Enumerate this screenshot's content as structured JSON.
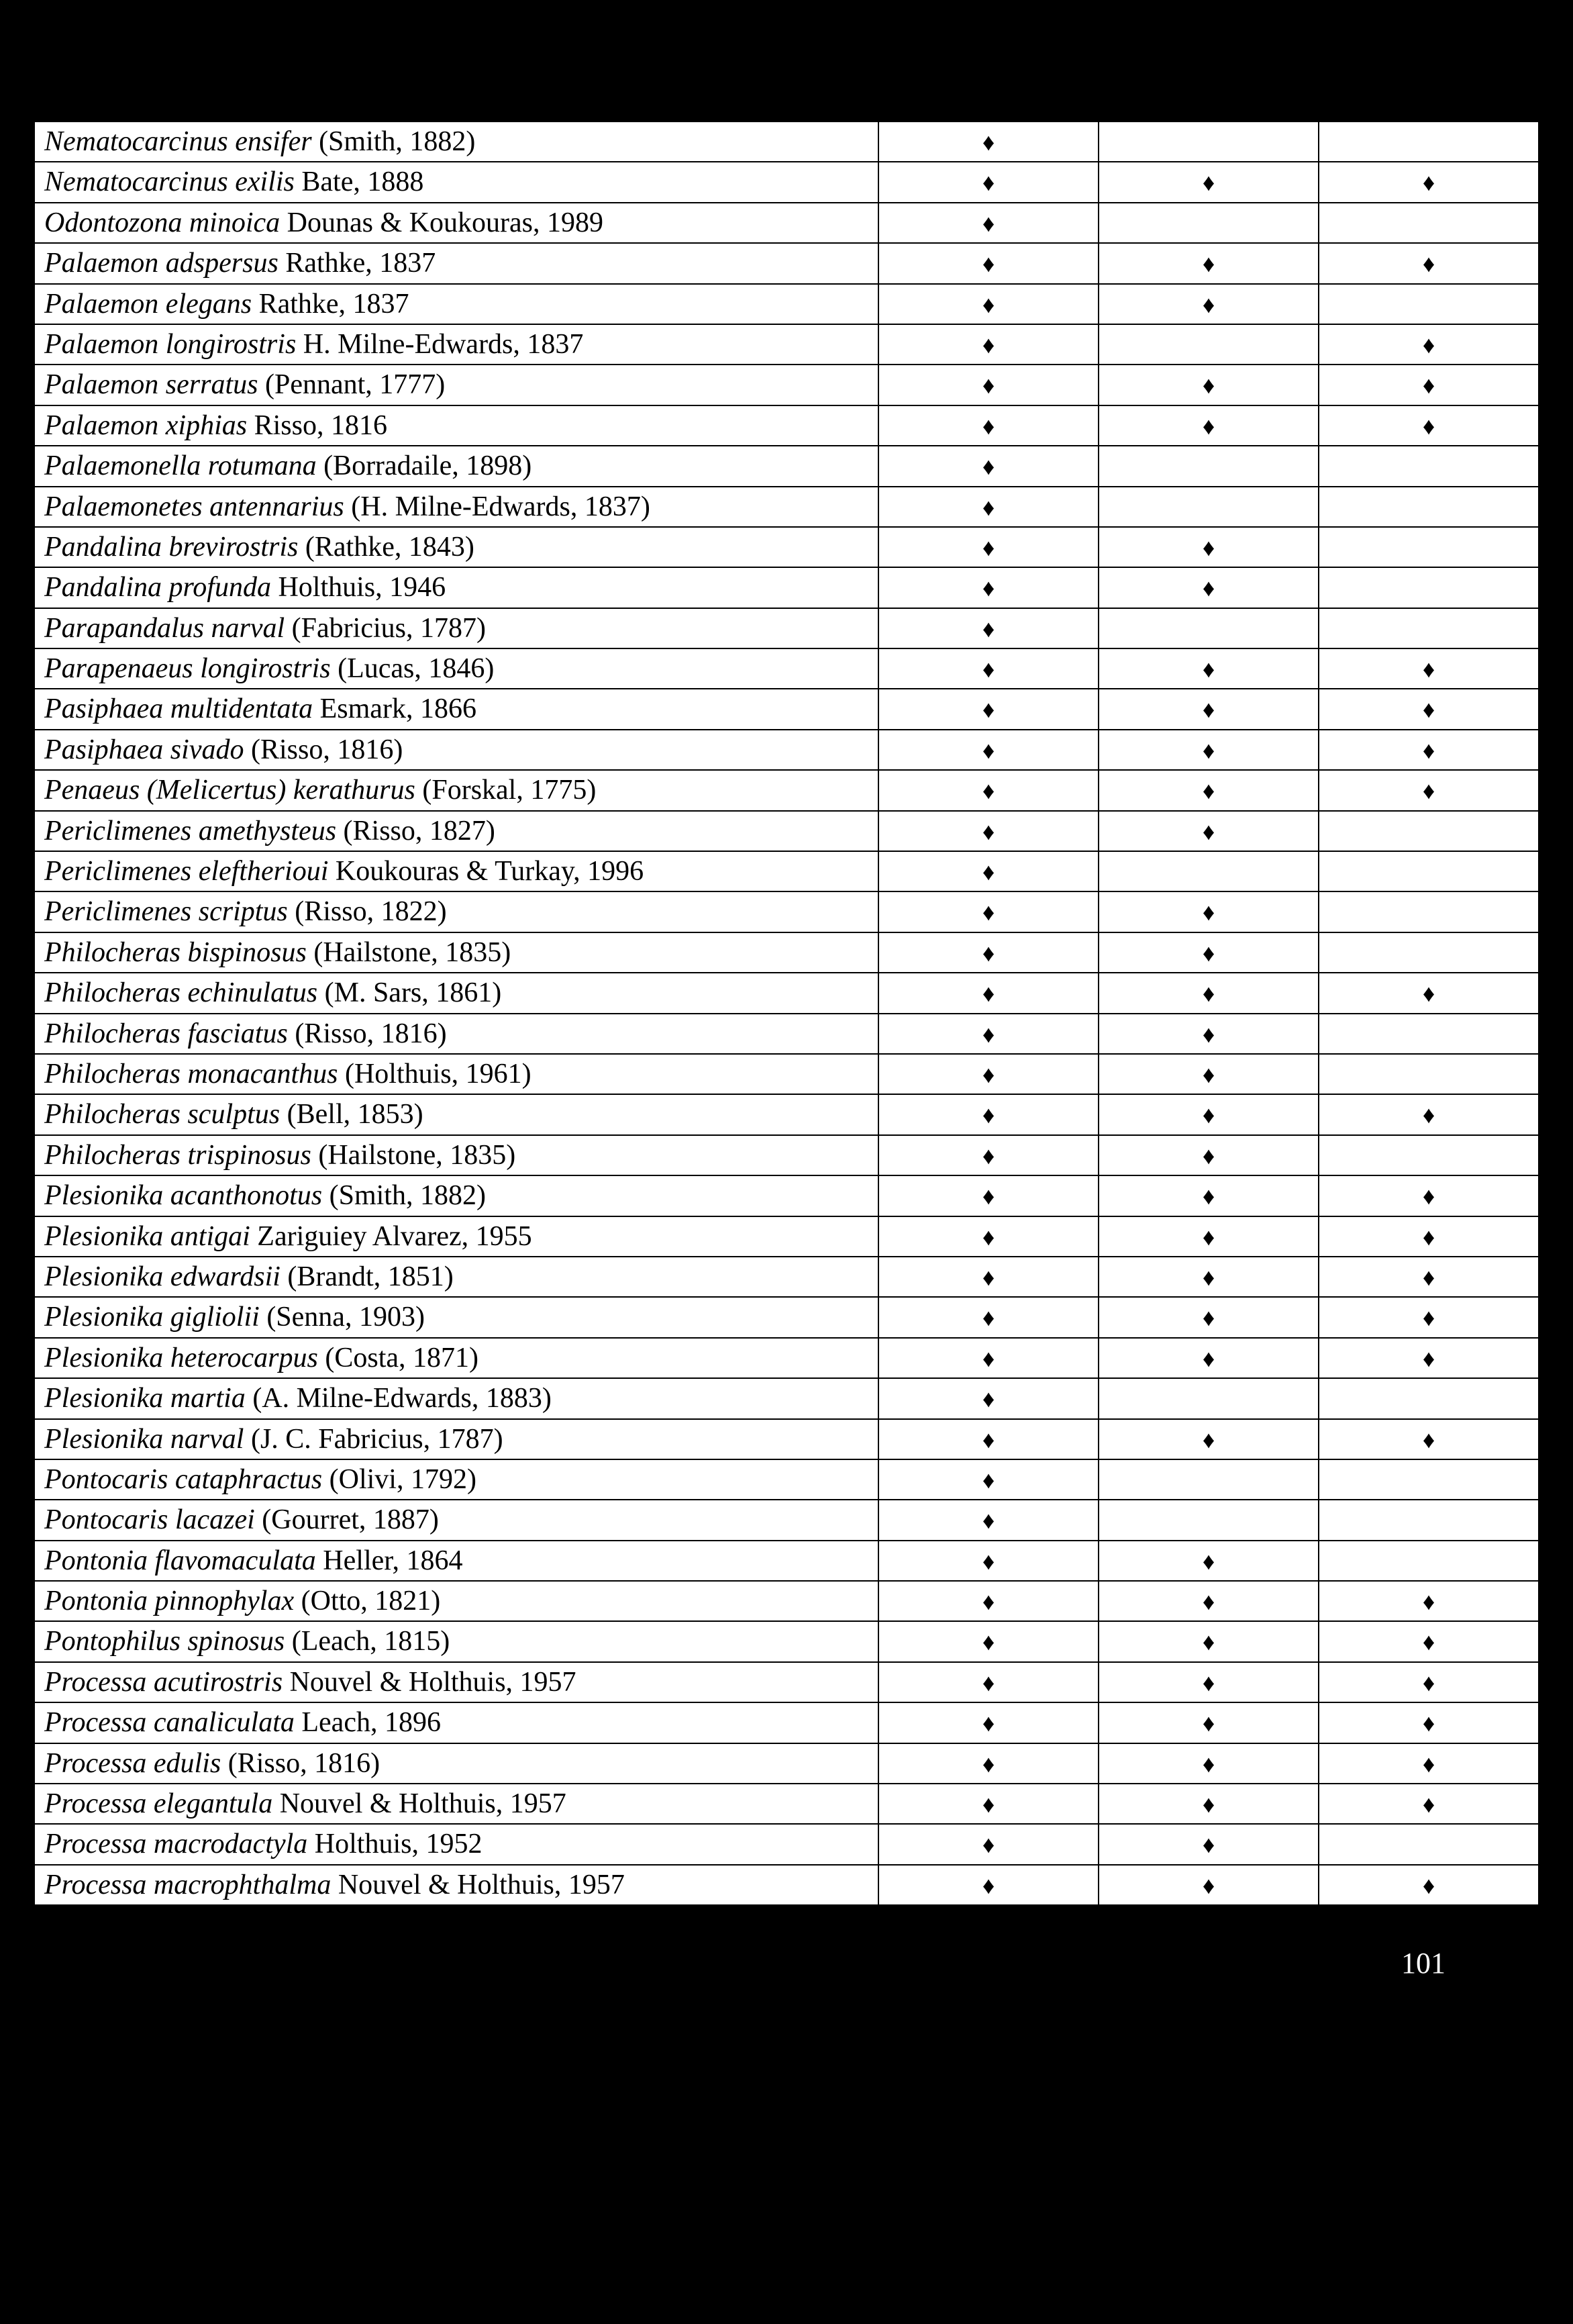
{
  "marker": "♦",
  "page_number": "101",
  "rows": [
    {
      "italic": "Nematocarcinus ensifer",
      "rest": " (Smith, 1882)",
      "c1": true,
      "c2": false,
      "c3": false
    },
    {
      "italic": "Nematocarcinus exilis",
      "rest": " Bate, 1888",
      "c1": true,
      "c2": true,
      "c3": true
    },
    {
      "italic": "Odontozona minoica",
      "rest": " Dounas & Koukouras, 1989",
      "c1": true,
      "c2": false,
      "c3": false
    },
    {
      "italic": "Palaemon adspersus",
      "rest": " Rathke, 1837",
      "c1": true,
      "c2": true,
      "c3": true
    },
    {
      "italic": "Palaemon elegans",
      "rest": " Rathke, 1837",
      "c1": true,
      "c2": true,
      "c3": false
    },
    {
      "italic": "Palaemon longirostris",
      "rest": " H. Milne-Edwards, 1837",
      "c1": true,
      "c2": false,
      "c3": true
    },
    {
      "italic": "Palaemon serratus",
      "rest": " (Pennant, 1777)",
      "c1": true,
      "c2": true,
      "c3": true
    },
    {
      "italic": "Palaemon xiphias",
      "rest": " Risso, 1816",
      "c1": true,
      "c2": true,
      "c3": true
    },
    {
      "italic": "Palaemonella rotumana",
      "rest": " (Borradaile, 1898)",
      "c1": true,
      "c2": false,
      "c3": false
    },
    {
      "italic": "Palaemonetes antennarius",
      "rest": " (H. Milne-Edwards, 1837)",
      "c1": true,
      "c2": false,
      "c3": false
    },
    {
      "italic": "Pandalina brevirostris",
      "rest": " (Rathke, 1843)",
      "c1": true,
      "c2": true,
      "c3": false
    },
    {
      "italic": "Pandalina profunda",
      "rest": " Holthuis, 1946",
      "c1": true,
      "c2": true,
      "c3": false
    },
    {
      "italic": "Parapandalus narval",
      "rest": " (Fabricius, 1787)",
      "c1": true,
      "c2": false,
      "c3": false
    },
    {
      "italic": "Parapenaeus longirostris",
      "rest": " (Lucas, 1846)",
      "c1": true,
      "c2": true,
      "c3": true
    },
    {
      "italic": "Pasiphaea multidentata",
      "rest": " Esmark, 1866",
      "c1": true,
      "c2": true,
      "c3": true
    },
    {
      "italic": "Pasiphaea sivado",
      "rest": " (Risso, 1816)",
      "c1": true,
      "c2": true,
      "c3": true
    },
    {
      "italic": "Penaeus (Melicertus) kerathurus",
      "rest": " (Forskal, 1775)",
      "c1": true,
      "c2": true,
      "c3": true
    },
    {
      "italic": "Periclimenes amethysteus",
      "rest": " (Risso, 1827)",
      "c1": true,
      "c2": true,
      "c3": false
    },
    {
      "italic": "Periclimenes eleftherioui",
      "rest": " Koukouras & Turkay, 1996",
      "c1": true,
      "c2": false,
      "c3": false
    },
    {
      "italic": "Periclimenes scriptus",
      "rest": " (Risso, 1822)",
      "c1": true,
      "c2": true,
      "c3": false
    },
    {
      "italic": "Philocheras bispinosus",
      "rest": " (Hailstone, 1835)",
      "c1": true,
      "c2": true,
      "c3": false
    },
    {
      "italic": "Philocheras echinulatus",
      "rest": " (M. Sars, 1861)",
      "c1": true,
      "c2": true,
      "c3": true
    },
    {
      "italic": "Philocheras fasciatus",
      "rest": " (Risso, 1816)",
      "c1": true,
      "c2": true,
      "c3": false
    },
    {
      "italic": "Philocheras monacanthus",
      "rest": " (Holthuis, 1961)",
      "c1": true,
      "c2": true,
      "c3": false
    },
    {
      "italic": "Philocheras sculptus",
      "rest": " (Bell, 1853)",
      "c1": true,
      "c2": true,
      "c3": true
    },
    {
      "italic": "Philocheras trispinosus",
      "rest": " (Hailstone, 1835)",
      "c1": true,
      "c2": true,
      "c3": false
    },
    {
      "italic": "Plesionika acanthonotus",
      "rest": " (Smith, 1882)",
      "c1": true,
      "c2": true,
      "c3": true
    },
    {
      "italic": "Plesionika antigai",
      "rest": " Zariguiey Alvarez, 1955",
      "c1": true,
      "c2": true,
      "c3": true
    },
    {
      "italic": "Plesionika edwardsii",
      "rest": " (Brandt, 1851)",
      "c1": true,
      "c2": true,
      "c3": true
    },
    {
      "italic": "Plesionika gigliolii",
      "rest": " (Senna, 1903)",
      "c1": true,
      "c2": true,
      "c3": true
    },
    {
      "italic": "Plesionika heterocarpus",
      "rest": " (Costa, 1871)",
      "c1": true,
      "c2": true,
      "c3": true
    },
    {
      "italic": "Plesionika martia",
      "rest": " (A. Milne-Edwards, 1883)",
      "c1": true,
      "c2": false,
      "c3": false
    },
    {
      "italic": "Plesionika narval",
      "rest": " (J. C. Fabricius, 1787)",
      "c1": true,
      "c2": true,
      "c3": true
    },
    {
      "italic": "Pontocaris cataphractus",
      "rest": " (Olivi, 1792)",
      "c1": true,
      "c2": false,
      "c3": false
    },
    {
      "italic": "Pontocaris lacazei",
      "rest": " (Gourret, 1887)",
      "c1": true,
      "c2": false,
      "c3": false
    },
    {
      "italic": "Pontonia flavomaculata",
      "rest": " Heller, 1864",
      "c1": true,
      "c2": true,
      "c3": false
    },
    {
      "italic": "Pontonia pinnophylax",
      "rest": " (Otto, 1821)",
      "c1": true,
      "c2": true,
      "c3": true
    },
    {
      "italic": "Pontophilus spinosus",
      "rest": " (Leach, 1815)",
      "c1": true,
      "c2": true,
      "c3": true
    },
    {
      "italic": "Processa acutirostris",
      "rest": " Nouvel & Holthuis, 1957",
      "c1": true,
      "c2": true,
      "c3": true
    },
    {
      "italic": "Processa canaliculata",
      "rest": " Leach, 1896",
      "c1": true,
      "c2": true,
      "c3": true
    },
    {
      "italic": "Processa edulis",
      "rest": " (Risso, 1816)",
      "c1": true,
      "c2": true,
      "c3": true
    },
    {
      "italic": "Processa elegantula",
      "rest": " Nouvel & Holthuis, 1957",
      "c1": true,
      "c2": true,
      "c3": true
    },
    {
      "italic": "Processa macrodactyla",
      "rest": " Holthuis, 1952",
      "c1": true,
      "c2": true,
      "c3": false
    },
    {
      "italic": "Processa macrophthalma",
      "rest": " Nouvel & Holthuis, 1957",
      "c1": true,
      "c2": true,
      "c3": true
    }
  ]
}
